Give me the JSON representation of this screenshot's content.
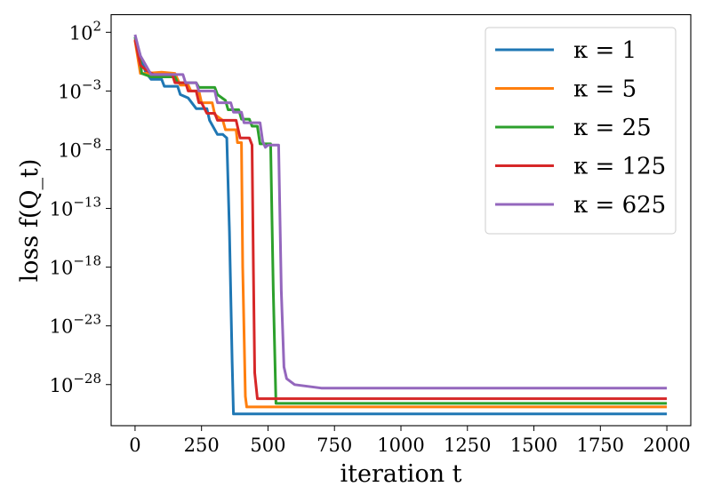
{
  "chart_data": {
    "type": "line",
    "xlabel": "iteration t",
    "ylabel": "loss f(Q_t)",
    "y_scale": "log",
    "xlim": [
      -90,
      2090
    ],
    "ylim_exponent": [
      -31.5,
      3.5
    ],
    "x_ticks": [
      {
        "value": 0,
        "label": "0"
      },
      {
        "value": 250,
        "label": "250"
      },
      {
        "value": 500,
        "label": "500"
      },
      {
        "value": 750,
        "label": "750"
      },
      {
        "value": 1000,
        "label": "1000"
      },
      {
        "value": 1250,
        "label": "1250"
      },
      {
        "value": 1500,
        "label": "1500"
      },
      {
        "value": 1750,
        "label": "1750"
      },
      {
        "value": 2000,
        "label": "2000"
      }
    ],
    "y_ticks": [
      {
        "exponent": 2,
        "base": "10",
        "sup": "2"
      },
      {
        "exponent": -3,
        "base": "10",
        "sup": "−3"
      },
      {
        "exponent": -8,
        "base": "10",
        "sup": "−8"
      },
      {
        "exponent": -13,
        "base": "10",
        "sup": "−13"
      },
      {
        "exponent": -18,
        "base": "10",
        "sup": "−18"
      },
      {
        "exponent": -23,
        "base": "10",
        "sup": "−23"
      },
      {
        "exponent": -28,
        "base": "10",
        "sup": "−28"
      }
    ],
    "legend": "top-right",
    "grid": false,
    "series": [
      {
        "name": "κ = 1",
        "color": "#1f77b4",
        "points_log10": [
          [
            0,
            1.6
          ],
          [
            20,
            0.0
          ],
          [
            40,
            -1.4
          ],
          [
            60,
            -2.0
          ],
          [
            100,
            -2.0
          ],
          [
            110,
            -2.6
          ],
          [
            160,
            -2.6
          ],
          [
            170,
            -3.3
          ],
          [
            200,
            -3.6
          ],
          [
            230,
            -4.5
          ],
          [
            270,
            -4.5
          ],
          [
            280,
            -5.5
          ],
          [
            310,
            -6.7
          ],
          [
            330,
            -6.7
          ],
          [
            345,
            -7.0
          ],
          [
            355,
            -15.0
          ],
          [
            365,
            -26.0
          ],
          [
            370,
            -30.5
          ],
          [
            2000,
            -30.5
          ]
        ]
      },
      {
        "name": "κ = 5",
        "color": "#ff7f0e",
        "points_log10": [
          [
            0,
            1.3
          ],
          [
            20,
            -1.5
          ],
          [
            35,
            -1.5
          ],
          [
            40,
            -1.5
          ],
          [
            100,
            -1.4
          ],
          [
            150,
            -1.5
          ],
          [
            170,
            -2.5
          ],
          [
            200,
            -2.5
          ],
          [
            210,
            -3.0
          ],
          [
            240,
            -3.0
          ],
          [
            250,
            -4.0
          ],
          [
            290,
            -4.0
          ],
          [
            300,
            -5.0
          ],
          [
            330,
            -5.5
          ],
          [
            340,
            -6.3
          ],
          [
            380,
            -6.3
          ],
          [
            385,
            -7.4
          ],
          [
            400,
            -7.4
          ],
          [
            405,
            -18.0
          ],
          [
            415,
            -29.0
          ],
          [
            420,
            -29.9
          ],
          [
            2000,
            -29.9
          ]
        ]
      },
      {
        "name": "κ = 25",
        "color": "#2ca02c",
        "points_log10": [
          [
            0,
            1.6
          ],
          [
            20,
            -0.5
          ],
          [
            25,
            -1.5
          ],
          [
            60,
            -1.8
          ],
          [
            150,
            -1.8
          ],
          [
            160,
            -2.3
          ],
          [
            230,
            -2.3
          ],
          [
            240,
            -2.7
          ],
          [
            300,
            -2.7
          ],
          [
            310,
            -3.3
          ],
          [
            340,
            -3.8
          ],
          [
            350,
            -4.6
          ],
          [
            390,
            -4.6
          ],
          [
            400,
            -5.4
          ],
          [
            430,
            -5.4
          ],
          [
            440,
            -6.0
          ],
          [
            460,
            -6.0
          ],
          [
            470,
            -7.5
          ],
          [
            510,
            -7.5
          ],
          [
            520,
            -20.0
          ],
          [
            530,
            -29.6
          ],
          [
            540,
            -29.6
          ],
          [
            2000,
            -29.6
          ]
        ]
      },
      {
        "name": "κ = 125",
        "color": "#d62728",
        "points_log10": [
          [
            0,
            1.4
          ],
          [
            20,
            -0.8
          ],
          [
            40,
            -1.2
          ],
          [
            70,
            -1.6
          ],
          [
            140,
            -1.6
          ],
          [
            150,
            -2.3
          ],
          [
            190,
            -2.3
          ],
          [
            200,
            -3.0
          ],
          [
            230,
            -3.0
          ],
          [
            240,
            -4.0
          ],
          [
            250,
            -4.0
          ],
          [
            270,
            -4.9
          ],
          [
            300,
            -4.9
          ],
          [
            310,
            -5.5
          ],
          [
            380,
            -5.5
          ],
          [
            395,
            -7.0
          ],
          [
            430,
            -7.0
          ],
          [
            440,
            -7.6
          ],
          [
            445,
            -18.0
          ],
          [
            450,
            -27.0
          ],
          [
            460,
            -29.2
          ],
          [
            2000,
            -29.2
          ]
        ]
      },
      {
        "name": "κ = 625",
        "color": "#9467bd",
        "points_log10": [
          [
            0,
            1.8
          ],
          [
            20,
            0.0
          ],
          [
            40,
            -0.8
          ],
          [
            60,
            -1.6
          ],
          [
            180,
            -1.6
          ],
          [
            190,
            -2.3
          ],
          [
            230,
            -2.3
          ],
          [
            240,
            -3.0
          ],
          [
            300,
            -3.0
          ],
          [
            310,
            -4.0
          ],
          [
            360,
            -4.0
          ],
          [
            370,
            -4.8
          ],
          [
            400,
            -4.8
          ],
          [
            410,
            -5.7
          ],
          [
            470,
            -5.7
          ],
          [
            480,
            -7.3
          ],
          [
            490,
            -7.8
          ],
          [
            500,
            -7.6
          ],
          [
            540,
            -7.6
          ],
          [
            550,
            -20.0
          ],
          [
            560,
            -26.5
          ],
          [
            570,
            -27.5
          ],
          [
            600,
            -28.0
          ],
          [
            700,
            -28.3
          ],
          [
            2000,
            -28.3
          ]
        ]
      }
    ]
  }
}
